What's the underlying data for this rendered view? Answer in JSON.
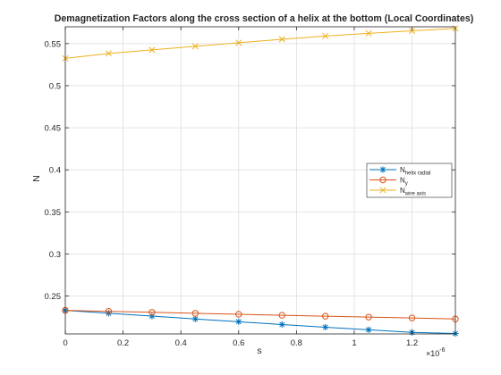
{
  "chart_data": {
    "type": "line",
    "title": "Demagnetization Factors along the cross section of a helix at the bottom (Local Coordinates)",
    "xlabel": "s",
    "ylabel": "N",
    "x_exponent_label": "×10",
    "x_exponent_power": "-6",
    "xlim": [
      0,
      1.35
    ],
    "ylim": [
      0.205,
      0.57
    ],
    "xticks": [
      0,
      0.2,
      0.4,
      0.6,
      0.8,
      1,
      1.2
    ],
    "xtick_labels": [
      "0",
      "0.2",
      "0.4",
      "0.6",
      "0.8",
      "1",
      "1.2"
    ],
    "yticks": [
      0.25,
      0.3,
      0.35,
      0.4,
      0.45,
      0.5,
      0.55
    ],
    "ytick_labels": [
      "0.25",
      "0.3",
      "0.35",
      "0.4",
      "0.45",
      "0.5",
      "0.55"
    ],
    "grid": true,
    "legend_position": "right",
    "x": [
      0,
      0.15,
      0.3,
      0.45,
      0.6,
      0.75,
      0.9,
      1.05,
      1.2,
      1.35
    ],
    "series": [
      {
        "name": "N",
        "name_sub": "helix radial",
        "color": "#0072BD",
        "marker": "asterisk",
        "values": [
          0.233,
          0.2295,
          0.2262,
          0.2228,
          0.2195,
          0.2162,
          0.213,
          0.2099,
          0.2068,
          0.2055
        ]
      },
      {
        "name": "N",
        "name_sub": "y",
        "color": "#D95319",
        "marker": "circle",
        "values": [
          0.233,
          0.2318,
          0.2307,
          0.2295,
          0.2284,
          0.2272,
          0.2261,
          0.225,
          0.224,
          0.2228
        ]
      },
      {
        "name": "N",
        "name_sub": "wire axis",
        "color": "#EDB120",
        "marker": "x",
        "values": [
          0.5325,
          0.5383,
          0.5425,
          0.5468,
          0.551,
          0.5552,
          0.559,
          0.5622,
          0.5652,
          0.568
        ]
      }
    ]
  }
}
